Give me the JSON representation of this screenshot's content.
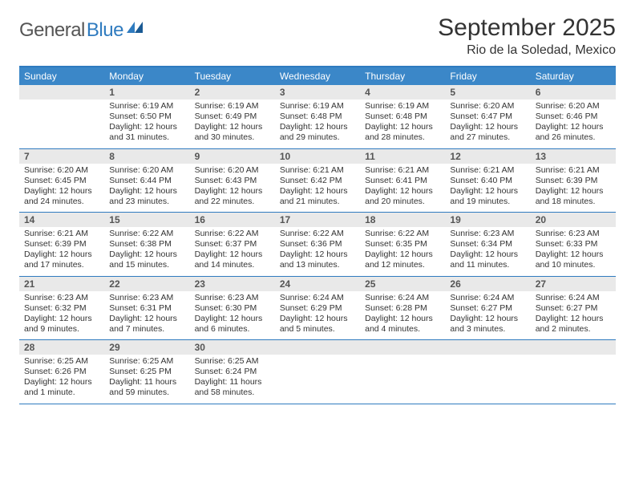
{
  "logo": {
    "part1": "General",
    "part2": "Blue"
  },
  "title": "September 2025",
  "location": "Rio de la Soledad, Mexico",
  "colors": {
    "header_bg": "#3b87c8",
    "border": "#2f7bbf",
    "daynum_bg": "#e9e9e9",
    "text": "#333333",
    "logo_gray": "#555555",
    "logo_blue": "#2f7bbf",
    "white": "#ffffff"
  },
  "typography": {
    "title_fontsize": 30,
    "location_fontsize": 16,
    "dow_fontsize": 12,
    "daynum_fontsize": 12,
    "body_fontsize": 10.5
  },
  "dow": [
    "Sunday",
    "Monday",
    "Tuesday",
    "Wednesday",
    "Thursday",
    "Friday",
    "Saturday"
  ],
  "weeks": [
    [
      {
        "n": "",
        "lines": []
      },
      {
        "n": "1",
        "lines": [
          "Sunrise: 6:19 AM",
          "Sunset: 6:50 PM",
          "Daylight: 12 hours",
          "and 31 minutes."
        ]
      },
      {
        "n": "2",
        "lines": [
          "Sunrise: 6:19 AM",
          "Sunset: 6:49 PM",
          "Daylight: 12 hours",
          "and 30 minutes."
        ]
      },
      {
        "n": "3",
        "lines": [
          "Sunrise: 6:19 AM",
          "Sunset: 6:48 PM",
          "Daylight: 12 hours",
          "and 29 minutes."
        ]
      },
      {
        "n": "4",
        "lines": [
          "Sunrise: 6:19 AM",
          "Sunset: 6:48 PM",
          "Daylight: 12 hours",
          "and 28 minutes."
        ]
      },
      {
        "n": "5",
        "lines": [
          "Sunrise: 6:20 AM",
          "Sunset: 6:47 PM",
          "Daylight: 12 hours",
          "and 27 minutes."
        ]
      },
      {
        "n": "6",
        "lines": [
          "Sunrise: 6:20 AM",
          "Sunset: 6:46 PM",
          "Daylight: 12 hours",
          "and 26 minutes."
        ]
      }
    ],
    [
      {
        "n": "7",
        "lines": [
          "Sunrise: 6:20 AM",
          "Sunset: 6:45 PM",
          "Daylight: 12 hours",
          "and 24 minutes."
        ]
      },
      {
        "n": "8",
        "lines": [
          "Sunrise: 6:20 AM",
          "Sunset: 6:44 PM",
          "Daylight: 12 hours",
          "and 23 minutes."
        ]
      },
      {
        "n": "9",
        "lines": [
          "Sunrise: 6:20 AM",
          "Sunset: 6:43 PM",
          "Daylight: 12 hours",
          "and 22 minutes."
        ]
      },
      {
        "n": "10",
        "lines": [
          "Sunrise: 6:21 AM",
          "Sunset: 6:42 PM",
          "Daylight: 12 hours",
          "and 21 minutes."
        ]
      },
      {
        "n": "11",
        "lines": [
          "Sunrise: 6:21 AM",
          "Sunset: 6:41 PM",
          "Daylight: 12 hours",
          "and 20 minutes."
        ]
      },
      {
        "n": "12",
        "lines": [
          "Sunrise: 6:21 AM",
          "Sunset: 6:40 PM",
          "Daylight: 12 hours",
          "and 19 minutes."
        ]
      },
      {
        "n": "13",
        "lines": [
          "Sunrise: 6:21 AM",
          "Sunset: 6:39 PM",
          "Daylight: 12 hours",
          "and 18 minutes."
        ]
      }
    ],
    [
      {
        "n": "14",
        "lines": [
          "Sunrise: 6:21 AM",
          "Sunset: 6:39 PM",
          "Daylight: 12 hours",
          "and 17 minutes."
        ]
      },
      {
        "n": "15",
        "lines": [
          "Sunrise: 6:22 AM",
          "Sunset: 6:38 PM",
          "Daylight: 12 hours",
          "and 15 minutes."
        ]
      },
      {
        "n": "16",
        "lines": [
          "Sunrise: 6:22 AM",
          "Sunset: 6:37 PM",
          "Daylight: 12 hours",
          "and 14 minutes."
        ]
      },
      {
        "n": "17",
        "lines": [
          "Sunrise: 6:22 AM",
          "Sunset: 6:36 PM",
          "Daylight: 12 hours",
          "and 13 minutes."
        ]
      },
      {
        "n": "18",
        "lines": [
          "Sunrise: 6:22 AM",
          "Sunset: 6:35 PM",
          "Daylight: 12 hours",
          "and 12 minutes."
        ]
      },
      {
        "n": "19",
        "lines": [
          "Sunrise: 6:23 AM",
          "Sunset: 6:34 PM",
          "Daylight: 12 hours",
          "and 11 minutes."
        ]
      },
      {
        "n": "20",
        "lines": [
          "Sunrise: 6:23 AM",
          "Sunset: 6:33 PM",
          "Daylight: 12 hours",
          "and 10 minutes."
        ]
      }
    ],
    [
      {
        "n": "21",
        "lines": [
          "Sunrise: 6:23 AM",
          "Sunset: 6:32 PM",
          "Daylight: 12 hours",
          "and 9 minutes."
        ]
      },
      {
        "n": "22",
        "lines": [
          "Sunrise: 6:23 AM",
          "Sunset: 6:31 PM",
          "Daylight: 12 hours",
          "and 7 minutes."
        ]
      },
      {
        "n": "23",
        "lines": [
          "Sunrise: 6:23 AM",
          "Sunset: 6:30 PM",
          "Daylight: 12 hours",
          "and 6 minutes."
        ]
      },
      {
        "n": "24",
        "lines": [
          "Sunrise: 6:24 AM",
          "Sunset: 6:29 PM",
          "Daylight: 12 hours",
          "and 5 minutes."
        ]
      },
      {
        "n": "25",
        "lines": [
          "Sunrise: 6:24 AM",
          "Sunset: 6:28 PM",
          "Daylight: 12 hours",
          "and 4 minutes."
        ]
      },
      {
        "n": "26",
        "lines": [
          "Sunrise: 6:24 AM",
          "Sunset: 6:27 PM",
          "Daylight: 12 hours",
          "and 3 minutes."
        ]
      },
      {
        "n": "27",
        "lines": [
          "Sunrise: 6:24 AM",
          "Sunset: 6:27 PM",
          "Daylight: 12 hours",
          "and 2 minutes."
        ]
      }
    ],
    [
      {
        "n": "28",
        "lines": [
          "Sunrise: 6:25 AM",
          "Sunset: 6:26 PM",
          "Daylight: 12 hours",
          "and 1 minute."
        ]
      },
      {
        "n": "29",
        "lines": [
          "Sunrise: 6:25 AM",
          "Sunset: 6:25 PM",
          "Daylight: 11 hours",
          "and 59 minutes."
        ]
      },
      {
        "n": "30",
        "lines": [
          "Sunrise: 6:25 AM",
          "Sunset: 6:24 PM",
          "Daylight: 11 hours",
          "and 58 minutes."
        ]
      },
      {
        "n": "",
        "lines": []
      },
      {
        "n": "",
        "lines": []
      },
      {
        "n": "",
        "lines": []
      },
      {
        "n": "",
        "lines": []
      }
    ]
  ]
}
